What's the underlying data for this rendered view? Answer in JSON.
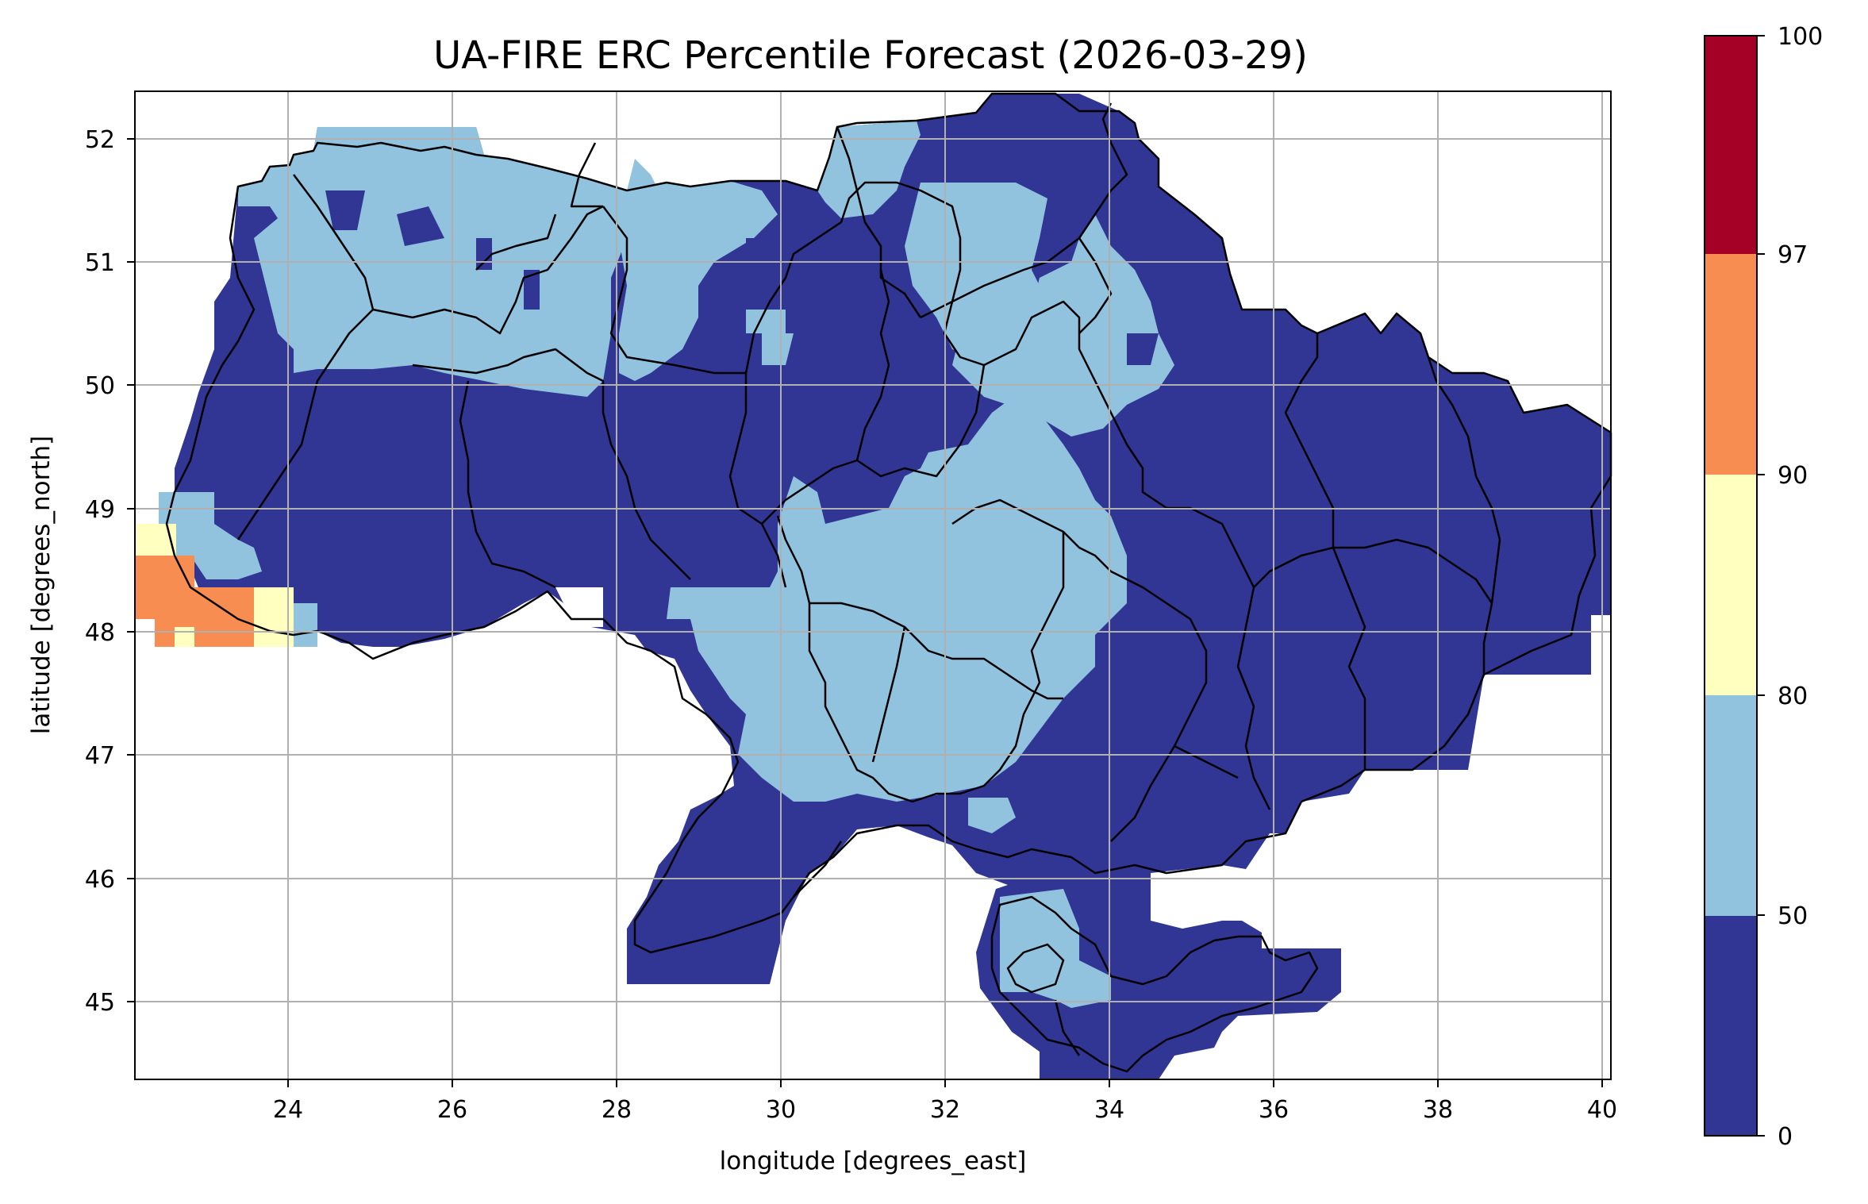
{
  "title": "UA-FIRE ERC Percentile Forecast (2026-03-29)",
  "xlabel": "longitude [degrees_east]",
  "ylabel": "latitude [degrees_north]",
  "map_extent": {
    "lon": [
      22.1,
      40.2
    ],
    "lat": [
      44.35,
      52.4
    ]
  },
  "x_ticks": [
    "24",
    "26",
    "28",
    "30",
    "32",
    "34",
    "36",
    "38",
    "40"
  ],
  "y_ticks": [
    "52",
    "51",
    "50",
    "49",
    "48",
    "47",
    "46",
    "45"
  ],
  "colorbar": {
    "ticks": [
      "0",
      "50",
      "80",
      "90",
      "97",
      "100"
    ],
    "bins": [
      {
        "range": "0-50",
        "color": "#313695"
      },
      {
        "range": "50-80",
        "color": "#91c3df"
      },
      {
        "range": "80-90",
        "color": "#ffffbf"
      },
      {
        "range": "90-97",
        "color": "#f88d52"
      },
      {
        "range": "97-100",
        "color": "#a50026"
      }
    ]
  },
  "colors": {
    "blue": "#313695",
    "lightblue": "#91c3df",
    "yellow": "#ffffbf",
    "orange": "#f88d52",
    "red": "#a50026",
    "grid": "#b0b0b0"
  }
}
